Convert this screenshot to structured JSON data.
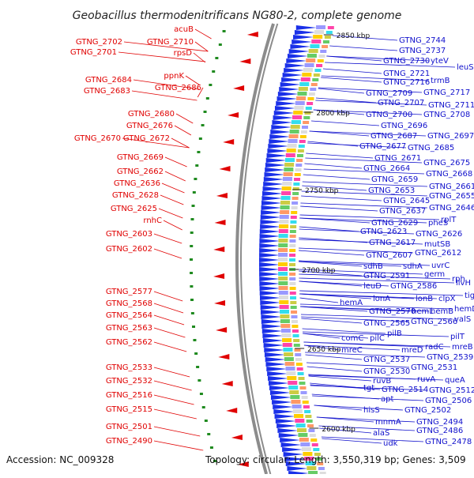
{
  "title": "Geobacillus thermodenitrificans NG80-2, complete genome",
  "accession": "Accession: NC_009328",
  "summary": "Topology: circular; Length: 3,550,319 bp; Genes: 3,509",
  "colors": {
    "left_label": "#e00000",
    "right_label": "#1010cc",
    "backbone": "#8c8c8c",
    "track_blue": "#1a30e8",
    "feature_red": "#e00000",
    "feature_green": "#1f8a1f"
  },
  "ticks": [
    {
      "label": "2850 kbp"
    },
    {
      "label": "2800 kbp"
    },
    {
      "label": "2750 kbp"
    },
    {
      "label": "2700 kbp"
    },
    {
      "label": "2650 kbp"
    },
    {
      "label": "2600 kbp"
    }
  ],
  "left_labels": [
    "acuB",
    "GTNG_2702",
    "GTNG_2710",
    "GTNG_2701",
    "rpsD",
    "ppnK",
    "GTNG_2684",
    "GTNG_2686",
    "GTNG_2683",
    "GTNG_2680",
    "GTNG_2676",
    "GTNG_2670",
    "GTNG_2672",
    "GTNG_2669",
    "GTNG_2662",
    "GTNG_2636",
    "GTNG_2628",
    "GTNG_2625",
    "rnhC",
    "GTNG_2603",
    "GTNG_2602",
    "GTNG_2577",
    "GTNG_2568",
    "GTNG_2564",
    "GTNG_2563",
    "GTNG_2562",
    "GTNG_2533",
    "GTNG_2532",
    "GTNG_2516",
    "GTNG_2515",
    "GTNG_2501",
    "GTNG_2490"
  ],
  "right_labels": [
    "GTNG_2744",
    "GTNG_2737",
    "GTNG_2730",
    "yteV",
    "leuS",
    "GTNG_2721",
    "trmB",
    "GTNG_2716",
    "GTNG_2709",
    "GTNG_2717",
    "GTNG_2707",
    "GTNG_2711",
    "GTNG_2700",
    "GTNG_2708",
    "GTNG_2696",
    "GTNG_2687",
    "GTNG_2697",
    "GTNG_2677",
    "GTNG_2685",
    "GTNG_2671",
    "GTNG_2675",
    "GTNG_2664",
    "GTNG_2668",
    "GTNG_2659",
    "GTNG_2661",
    "GTNG_2653",
    "GTNG_2655",
    "GTNG_2645",
    "GTNG_2646",
    "GTNG_2637",
    "GTNG_2629",
    "pheS",
    "rplT",
    "GTNG_2623",
    "GTNG_2626",
    "GTNG_2617",
    "mutSB",
    "GTNG_2607",
    "GTNG_2612",
    "sdhB",
    "sdhA",
    "uvrC",
    "GTNG_2591",
    "germ",
    "rph",
    "leuD",
    "GTNG_2586",
    "ilvH",
    "lonA",
    "lonB",
    "clpX",
    "tig",
    "hemA",
    "GTNG_2570",
    "hemL",
    "hemB",
    "hemD",
    "GTNG_2565",
    "GTNG_2566",
    "valS",
    "pilB",
    "comC",
    "pilC",
    "pilT",
    "radC",
    "mreC",
    "mreD",
    "mreB",
    "GTNG_2537",
    "GTNG_2539",
    "GTNG_2530",
    "GTNG_2531",
    "ruvB",
    "ruvA",
    "tgt",
    "GTNG_2514",
    "queA",
    "GTNG_2512",
    "apt",
    "GTNG_2506",
    "hisS",
    "GTNG_2502",
    "mnmA",
    "GTNG_2494",
    "alaS",
    "GTNG_2486",
    "udk",
    "GTNG_2478"
  ]
}
